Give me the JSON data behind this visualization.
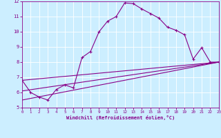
{
  "xlabel": "Windchill (Refroidissement éolien,°C)",
  "xlim": [
    0,
    23
  ],
  "ylim": [
    5,
    12
  ],
  "xticks": [
    0,
    1,
    2,
    3,
    4,
    5,
    6,
    7,
    8,
    9,
    10,
    11,
    12,
    13,
    14,
    15,
    16,
    17,
    18,
    19,
    20,
    21,
    22,
    23
  ],
  "yticks": [
    5,
    6,
    7,
    8,
    9,
    10,
    11,
    12
  ],
  "bg_color": "#cceeff",
  "line_color": "#880088",
  "grid_color": "#ffffff",
  "line1_x": [
    0,
    1,
    2,
    3,
    4,
    5,
    6,
    7,
    8,
    9,
    10,
    11,
    12,
    13,
    14,
    15,
    16,
    17,
    18,
    19,
    20,
    21,
    22,
    23
  ],
  "line1_y": [
    6.8,
    6.0,
    5.7,
    5.5,
    6.2,
    6.5,
    6.3,
    8.3,
    8.7,
    10.0,
    10.7,
    11.0,
    11.9,
    11.85,
    11.5,
    11.2,
    10.9,
    10.3,
    10.1,
    9.8,
    8.2,
    8.95,
    8.0,
    8.0
  ],
  "line2_x": [
    0,
    23
  ],
  "line2_y": [
    6.1,
    8.0
  ],
  "line3_x": [
    0,
    23
  ],
  "line3_y": [
    5.5,
    8.0
  ],
  "line4_x": [
    0,
    23
  ],
  "line4_y": [
    6.8,
    8.0
  ]
}
